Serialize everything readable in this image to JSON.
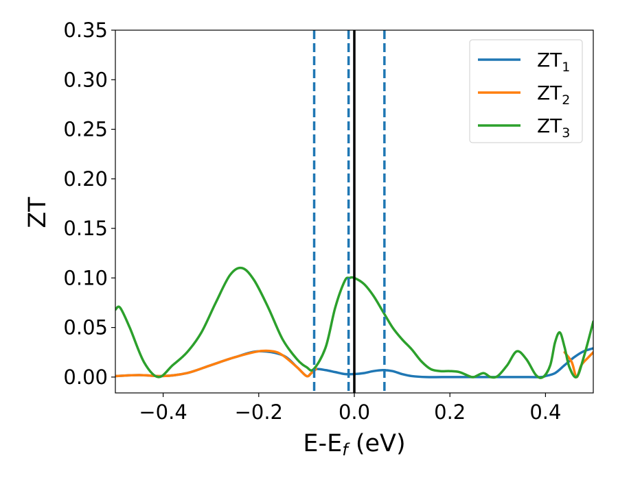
{
  "chart_data": {
    "type": "line",
    "xlabel": "E-E",
    "xlabel_sub": "f",
    "xlabel_unit": " (eV)",
    "ylabel": "ZT",
    "xlim": [
      -0.5,
      0.5
    ],
    "ylim": [
      -0.016,
      0.35
    ],
    "x_ticks": [
      -0.4,
      -0.2,
      0.0,
      0.2,
      0.4
    ],
    "x_tick_labels": [
      "−0.4",
      "−0.2",
      "0.0",
      "0.2",
      "0.4"
    ],
    "y_ticks": [
      0.0,
      0.05,
      0.1,
      0.15,
      0.2,
      0.25,
      0.3,
      0.35
    ],
    "y_tick_labels": [
      "0.00",
      "0.05",
      "0.10",
      "0.15",
      "0.20",
      "0.25",
      "0.30",
      "0.35"
    ],
    "grid": false,
    "legend_position": "top-right",
    "series": [
      {
        "name": "ZT",
        "name_sub": "1",
        "color": "#1f77b4",
        "x": [
          -0.5,
          -0.45,
          -0.4,
          -0.35,
          -0.3,
          -0.25,
          -0.2,
          -0.15,
          -0.12,
          -0.1,
          -0.09,
          -0.08,
          -0.06,
          -0.04,
          -0.02,
          0.0,
          0.02,
          0.04,
          0.06,
          0.08,
          0.1,
          0.12,
          0.15,
          0.2,
          0.25,
          0.3,
          0.35,
          0.39,
          0.4,
          0.42,
          0.44,
          0.46,
          0.48,
          0.5
        ],
        "y": [
          0.001,
          0.002,
          0.001,
          0.004,
          0.012,
          0.02,
          0.026,
          0.022,
          0.01,
          0.001,
          0.004,
          0.008,
          0.007,
          0.005,
          0.003,
          0.003,
          0.004,
          0.006,
          0.007,
          0.006,
          0.003,
          0.001,
          0.0,
          0.0,
          0.0,
          0.0,
          0.0,
          0.0,
          0.001,
          0.004,
          0.012,
          0.02,
          0.026,
          0.029
        ]
      },
      {
        "name": "ZT",
        "name_sub": "2",
        "color": "#ff7f0e",
        "x": [
          -0.5,
          -0.45,
          -0.4,
          -0.35,
          -0.3,
          -0.25,
          -0.2,
          -0.17,
          -0.15,
          -0.12,
          -0.1,
          -0.09,
          -0.08,
          0.44,
          0.455,
          0.465,
          0.475,
          0.49,
          0.5
        ],
        "y": [
          0.001,
          0.002,
          0.001,
          0.004,
          0.012,
          0.02,
          0.026,
          0.026,
          0.022,
          0.01,
          0.001,
          0.004,
          0.008,
          0.025,
          0.015,
          0.0,
          0.012,
          0.02,
          0.025
        ]
      },
      {
        "name": "ZT",
        "name_sub": "3",
        "color": "#2ca02c",
        "x": [
          -0.5,
          -0.49,
          -0.47,
          -0.44,
          -0.41,
          -0.38,
          -0.35,
          -0.32,
          -0.29,
          -0.26,
          -0.235,
          -0.21,
          -0.18,
          -0.15,
          -0.12,
          -0.1,
          -0.085,
          -0.06,
          -0.04,
          -0.02,
          -0.01,
          0.0,
          0.02,
          0.04,
          0.06,
          0.08,
          0.1,
          0.12,
          0.14,
          0.16,
          0.18,
          0.2,
          0.22,
          0.24,
          0.25,
          0.27,
          0.285,
          0.3,
          0.32,
          0.34,
          0.36,
          0.38,
          0.395,
          0.41,
          0.42,
          0.43,
          0.44,
          0.45,
          0.465,
          0.48,
          0.5
        ],
        "y": [
          0.068,
          0.07,
          0.05,
          0.015,
          0.0,
          0.012,
          0.025,
          0.045,
          0.075,
          0.103,
          0.11,
          0.098,
          0.07,
          0.038,
          0.018,
          0.01,
          0.008,
          0.03,
          0.07,
          0.097,
          0.1,
          0.1,
          0.094,
          0.082,
          0.066,
          0.05,
          0.038,
          0.028,
          0.016,
          0.008,
          0.006,
          0.006,
          0.005,
          0.001,
          0.0,
          0.004,
          0.0,
          0.001,
          0.012,
          0.026,
          0.018,
          0.002,
          0.0,
          0.012,
          0.035,
          0.045,
          0.03,
          0.01,
          0.0,
          0.02,
          0.056
        ]
      }
    ],
    "vlines": [
      {
        "x": -0.084,
        "style": "dashed",
        "color": "#1f77b4"
      },
      {
        "x": -0.012,
        "style": "dashed",
        "color": "#1f77b4"
      },
      {
        "x": 0.0,
        "style": "solid",
        "color": "#000000"
      },
      {
        "x": 0.063,
        "style": "dashed",
        "color": "#1f77b4"
      }
    ]
  }
}
